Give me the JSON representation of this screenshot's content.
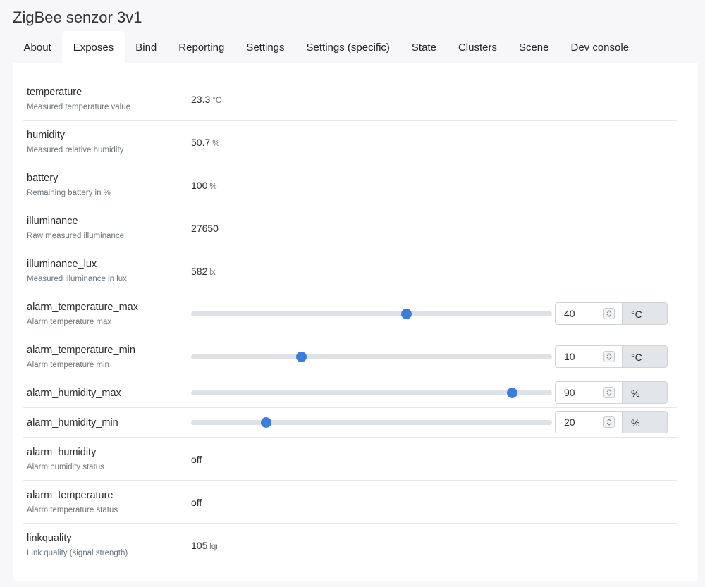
{
  "title": "ZigBee senzor 3v1",
  "tabs": [
    {
      "label": "About"
    },
    {
      "label": "Exposes",
      "active": true
    },
    {
      "label": "Bind"
    },
    {
      "label": "Reporting"
    },
    {
      "label": "Settings"
    },
    {
      "label": "Settings (specific)"
    },
    {
      "label": "State"
    },
    {
      "label": "Clusters"
    },
    {
      "label": "Scene"
    },
    {
      "label": "Dev console"
    }
  ],
  "colors": {
    "accent": "#3b7ddd",
    "track": "#dee2e6",
    "panel": "#ffffff",
    "page": "#f7f7f9"
  },
  "exposes": {
    "temperature": {
      "name": "temperature",
      "desc": "Measured temperature value",
      "value": "23.3",
      "unit": "°C"
    },
    "humidity": {
      "name": "humidity",
      "desc": "Measured relative humidity",
      "value": "50.7",
      "unit": "%"
    },
    "battery": {
      "name": "battery",
      "desc": "Remaining battery in %",
      "value": "100",
      "unit": "%"
    },
    "illuminance": {
      "name": "illuminance",
      "desc": "Raw measured illuminance",
      "value": "27650"
    },
    "illuminance_lux": {
      "name": "illuminance_lux",
      "desc": "Measured illuminance in lux",
      "value": "582",
      "unit": "lx"
    },
    "alarm_temperature_max": {
      "name": "alarm_temperature_max",
      "desc": "Alarm temperature max",
      "value": "40",
      "unit": "°C",
      "slider_fraction": 0.597
    },
    "alarm_temperature_min": {
      "name": "alarm_temperature_min",
      "desc": "Alarm temperature min",
      "value": "10",
      "unit": "°C",
      "slider_fraction": 0.306
    },
    "alarm_humidity_max": {
      "name": "alarm_humidity_max",
      "value": "90",
      "unit": "%",
      "slider_fraction": 0.889
    },
    "alarm_humidity_min": {
      "name": "alarm_humidity_min",
      "value": "20",
      "unit": "%",
      "slider_fraction": 0.208
    },
    "alarm_humidity": {
      "name": "alarm_humidity",
      "desc": "Alarm humidity status",
      "value": "off"
    },
    "alarm_temperature": {
      "name": "alarm_temperature",
      "desc": "Alarm temperature status",
      "value": "off"
    },
    "linkquality": {
      "name": "linkquality",
      "desc": "Link quality (signal strength)",
      "value": "105",
      "unit": "lqi"
    }
  }
}
